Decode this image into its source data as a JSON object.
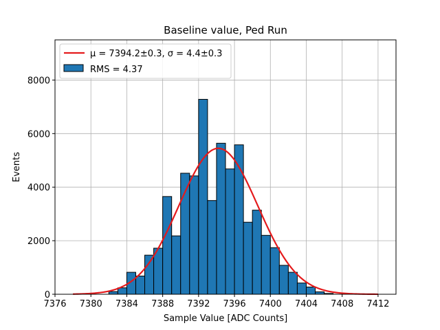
{
  "chart_data": {
    "type": "bar",
    "title": "Baseline value, Ped Run",
    "xlabel": "Sample Value [ADC Counts]",
    "ylabel": "Events",
    "xlim": [
      7376,
      7414
    ],
    "ylim": [
      0,
      9500
    ],
    "xticks": [
      7376,
      7380,
      7384,
      7388,
      7392,
      7396,
      7400,
      7404,
      7408,
      7412
    ],
    "yticks": [
      0,
      2000,
      4000,
      6000,
      8000
    ],
    "grid": true,
    "bin_width": 1,
    "bins": [
      {
        "x": 7382,
        "count": 100
      },
      {
        "x": 7383,
        "count": 240
      },
      {
        "x": 7384,
        "count": 820
      },
      {
        "x": 7385,
        "count": 680
      },
      {
        "x": 7386,
        "count": 1460
      },
      {
        "x": 7387,
        "count": 1720
      },
      {
        "x": 7388,
        "count": 3650
      },
      {
        "x": 7389,
        "count": 2180
      },
      {
        "x": 7390,
        "count": 4520
      },
      {
        "x": 7391,
        "count": 4420
      },
      {
        "x": 7392,
        "count": 7280
      },
      {
        "x": 7393,
        "count": 3500
      },
      {
        "x": 7394,
        "count": 5640
      },
      {
        "x": 7395,
        "count": 4680
      },
      {
        "x": 7396,
        "count": 5580
      },
      {
        "x": 7397,
        "count": 2690
      },
      {
        "x": 7398,
        "count": 3140
      },
      {
        "x": 7399,
        "count": 2200
      },
      {
        "x": 7400,
        "count": 1740
      },
      {
        "x": 7401,
        "count": 1080
      },
      {
        "x": 7402,
        "count": 820
      },
      {
        "x": 7403,
        "count": 420
      },
      {
        "x": 7404,
        "count": 270
      },
      {
        "x": 7405,
        "count": 90
      },
      {
        "x": 7406,
        "count": 30
      }
    ],
    "fit": {
      "type": "gaussian",
      "mu": 7394.2,
      "sigma": 4.4,
      "amplitude": 5450,
      "x_range": [
        7378,
        7412
      ]
    },
    "legend": {
      "position": "top-left",
      "entries": [
        {
          "kind": "line",
          "label": "μ = 7394.2±0.3, σ = 4.4±0.3"
        },
        {
          "kind": "patch",
          "label": "RMS = 4.37"
        }
      ]
    },
    "colors": {
      "bar_fill": "#1f77b4",
      "bar_edge": "#000000",
      "fit_line": "#e41a1c",
      "grid": "#b0b0b0"
    }
  }
}
